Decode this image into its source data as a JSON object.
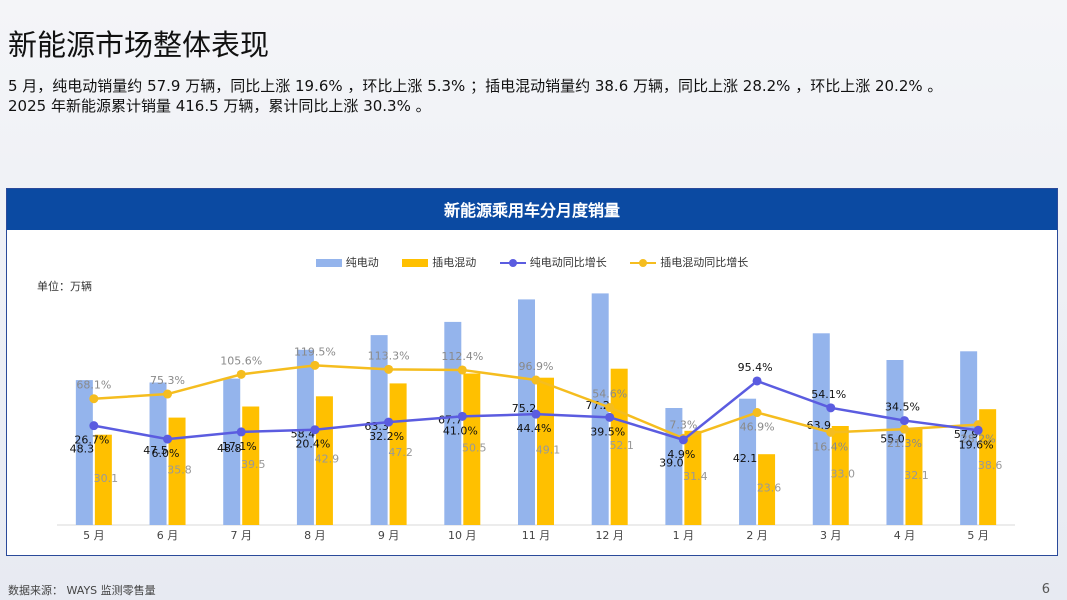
{
  "slide": {
    "title": "新能源市场整体表现",
    "summary_line1": "5 月，纯电动销量约 57.9 万辆，同比上涨 19.6% ，环比上涨 5.3% ；插电混动销量约 38.6 万辆，同比上涨 28.2% ，环比上涨 20.2% 。",
    "summary_line2": "2025 年新能源累计销量 416.5 万辆，累计同比上涨 30.3% 。",
    "source": "数据来源： WAYS 监测零售量",
    "page_number": "6"
  },
  "chart_data": {
    "type": "bar",
    "title": "新能源乘用车分月度销量",
    "unit_label": "单位：万辆",
    "categories": [
      "5 月",
      "6 月",
      "7 月",
      "8 月",
      "9 月",
      "10 月",
      "11 月",
      "12 月",
      "1 月",
      "2 月",
      "3 月",
      "4 月",
      "5 月"
    ],
    "series": [
      {
        "name": "纯电动",
        "kind": "bar",
        "color": "#94b4ec",
        "values": [
          48.3,
          47.5,
          48.8,
          58.4,
          63.3,
          67.7,
          75.2,
          77.2,
          39.0,
          42.1,
          63.9,
          55.0,
          57.9
        ],
        "labels": [
          "48.3",
          "47.5",
          "48.8",
          "58.4",
          "63.3",
          "67.7",
          "75.2",
          "77.2",
          "39.0",
          "42.1",
          "63.9",
          "55.0",
          "57.9"
        ]
      },
      {
        "name": "插电混动",
        "kind": "bar",
        "color": "#ffc000",
        "values": [
          30.1,
          35.8,
          39.5,
          42.9,
          47.2,
          50.5,
          49.1,
          52.1,
          31.4,
          23.6,
          33.0,
          32.1,
          38.6
        ],
        "labels": [
          "30.1",
          "35.8",
          "39.5",
          "42.9",
          "47.2",
          "50.5",
          "49.1",
          "52.1",
          "31.4",
          "23.6",
          "33.0",
          "32.1",
          "38.6"
        ]
      },
      {
        "name": "纯电动同比增长",
        "kind": "line",
        "color": "#5b5ce0",
        "values": [
          26.7,
          6.0,
          17.1,
          20.4,
          32.2,
          41.0,
          44.4,
          39.5,
          4.9,
          95.4,
          54.1,
          34.5,
          19.6
        ],
        "labels": [
          "26.7%",
          "6.0%",
          "17.1%",
          "20.4%",
          "32.2%",
          "41.0%",
          "44.4%",
          "39.5%",
          "4.9%",
          "95.4%",
          "54.1%",
          "34.5%",
          "19.6%"
        ]
      },
      {
        "name": "插电混动同比增长",
        "kind": "line",
        "color": "#f5bd1f",
        "values": [
          68.1,
          75.3,
          105.6,
          119.5,
          113.3,
          112.4,
          96.9,
          54.6,
          7.3,
          46.9,
          16.4,
          21.3,
          28.2
        ],
        "labels": [
          "68.1%",
          "75.3%",
          "105.6%",
          "119.5%",
          "113.3%",
          "112.4%",
          "96.9%",
          "54.6%",
          "7.3%",
          "46.9%",
          "16.4%",
          "21.3%",
          "28.2%"
        ]
      }
    ],
    "bar_ylim": [
      0,
      100
    ],
    "xlabel": "",
    "ylabel": "",
    "legend_position": "top"
  }
}
